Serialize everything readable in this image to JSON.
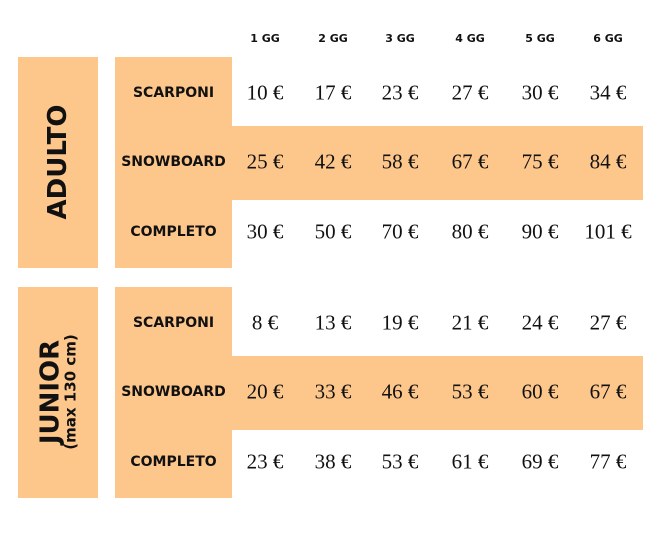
{
  "columns": [
    "1 GG",
    "2 GG",
    "3 GG",
    "4 GG",
    "5 GG",
    "6 GG"
  ],
  "groups": [
    {
      "label": "ADULTO",
      "rows": [
        {
          "label": "SCARPONI",
          "prices": [
            "10 €",
            "17 €",
            "23 €",
            "27 €",
            "30 €",
            "34 €"
          ]
        },
        {
          "label": "SNOWBOARD",
          "prices": [
            "25 €",
            "42 €",
            "58 €",
            "67 €",
            "75 €",
            "84 €"
          ]
        },
        {
          "label": "COMPLETO",
          "prices": [
            "30 €",
            "50 €",
            "70 €",
            "80 €",
            "90 €",
            "101 €"
          ]
        }
      ]
    },
    {
      "label": "JUNIOR",
      "sublabel": "(max 130 cm)",
      "rows": [
        {
          "label": "SCARPONI",
          "prices": [
            "8 €",
            "13 €",
            "19 €",
            "21 €",
            "24 €",
            "27 €"
          ]
        },
        {
          "label": "SNOWBOARD",
          "prices": [
            "20 €",
            "33 €",
            "46 €",
            "53 €",
            "60 €",
            "67 €"
          ]
        },
        {
          "label": "COMPLETO",
          "prices": [
            "23 €",
            "38 €",
            "53 €",
            "61 €",
            "69 €",
            "77 €"
          ]
        }
      ]
    }
  ]
}
